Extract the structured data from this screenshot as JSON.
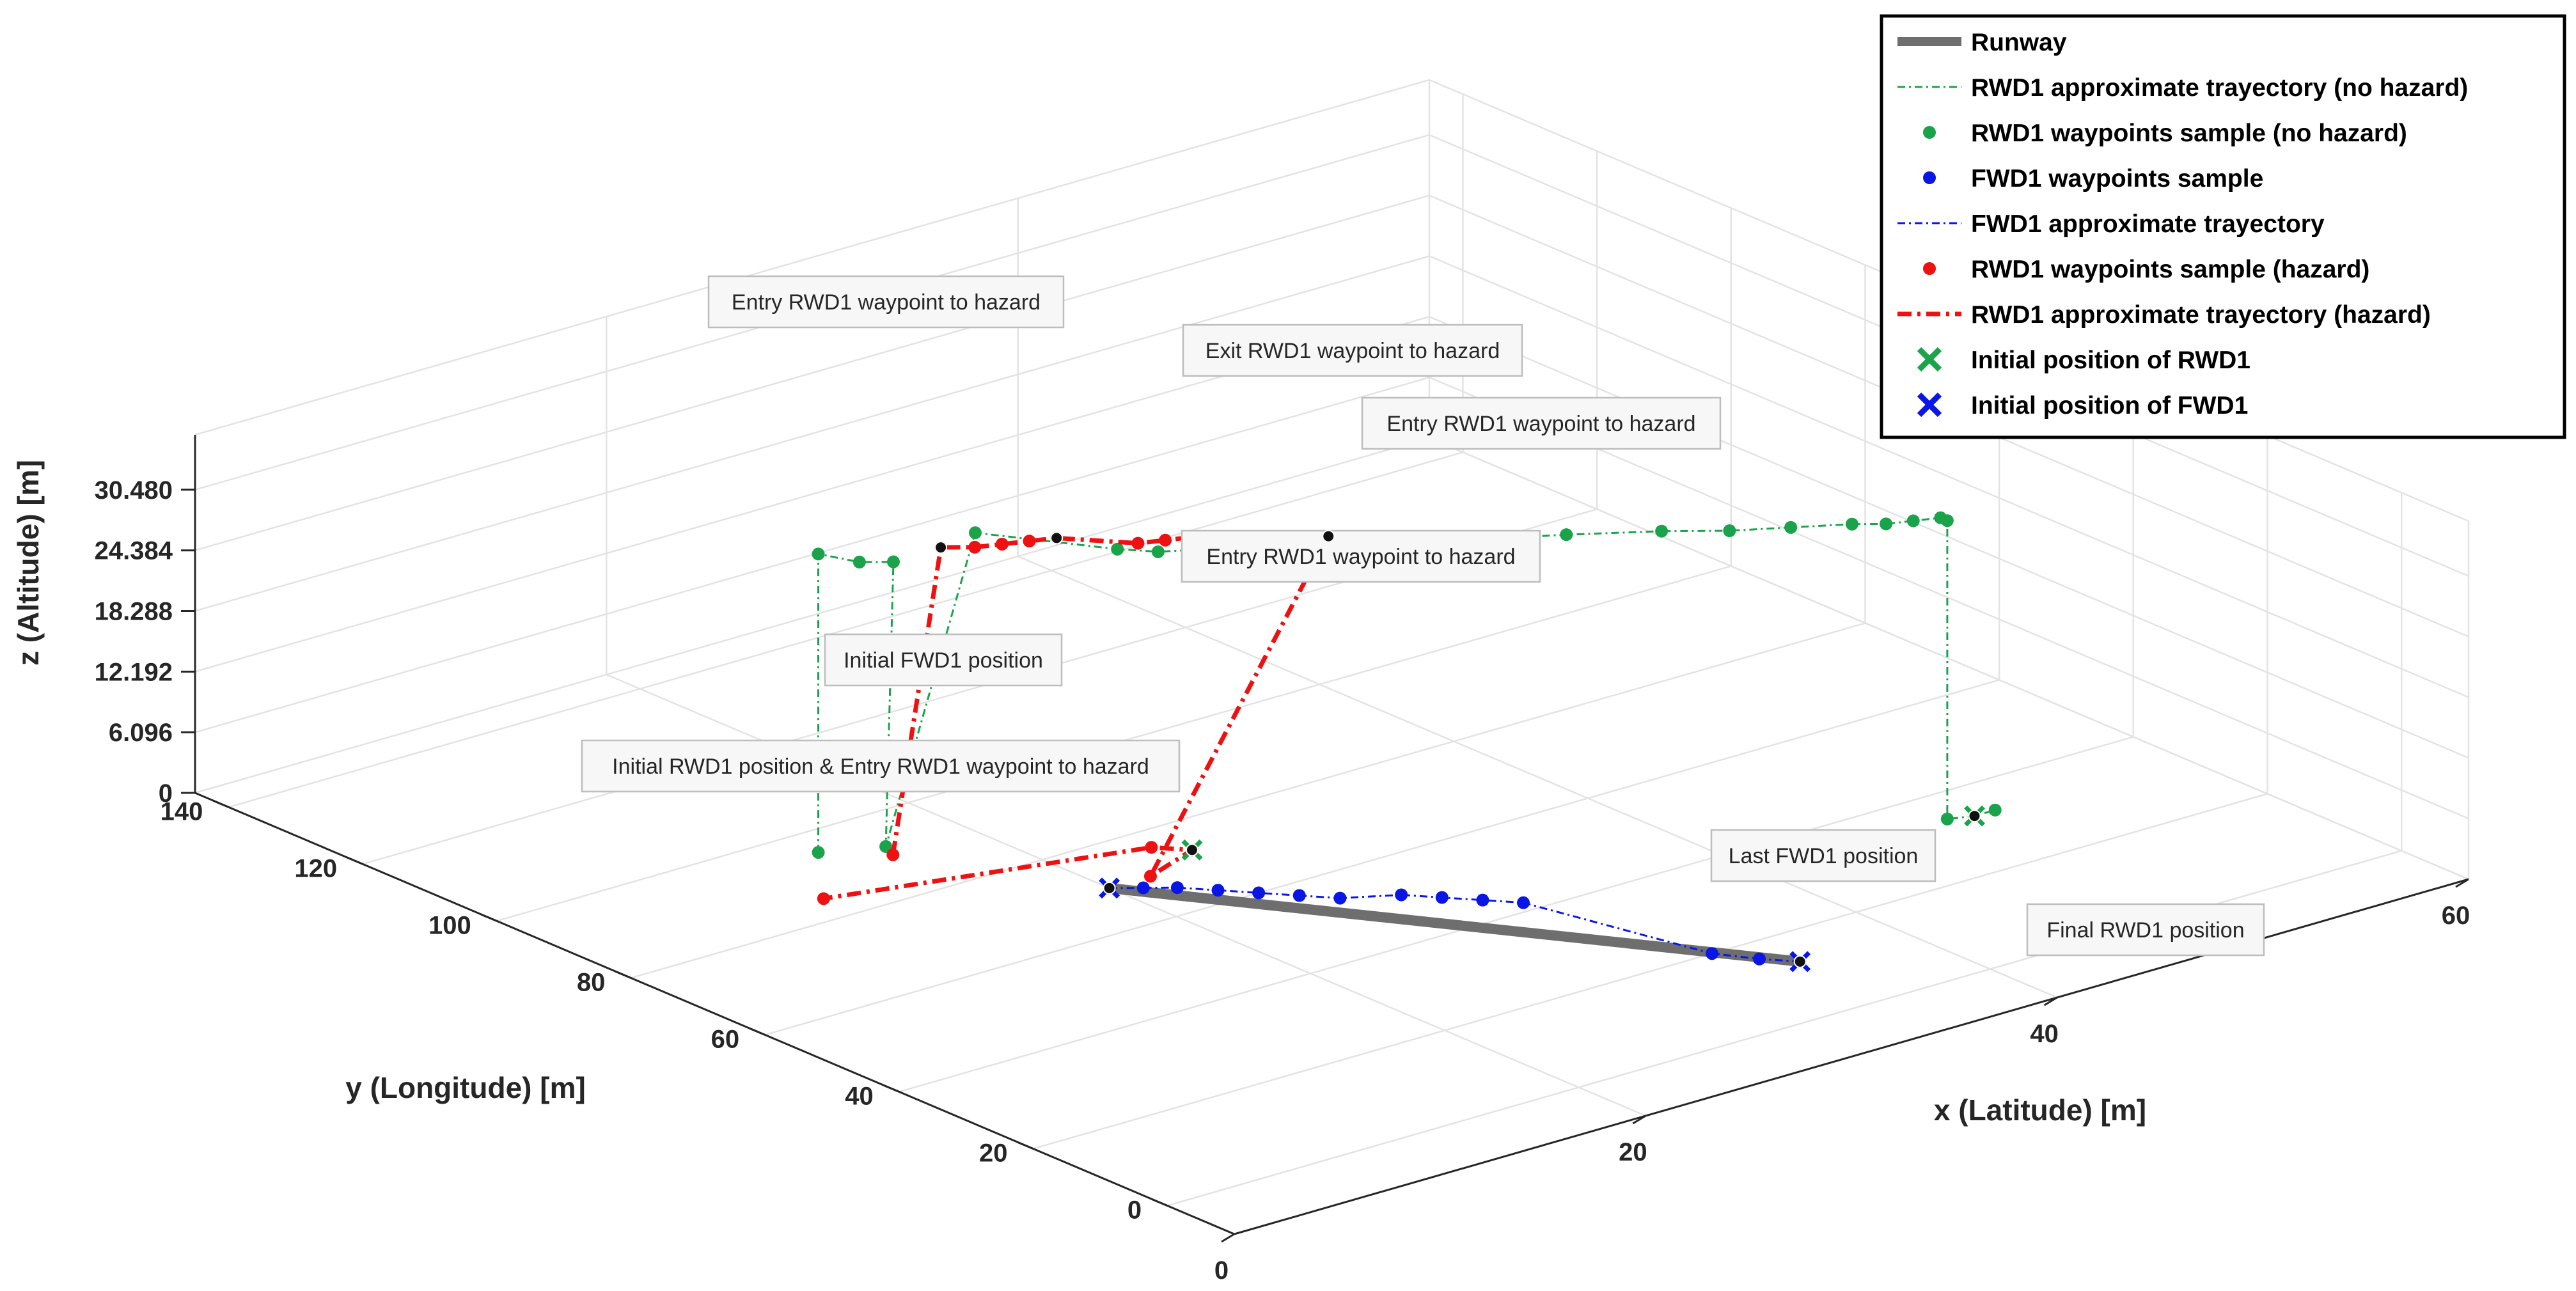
{
  "chart_data": {
    "type": "scatter",
    "subtype": "3d-line",
    "title": "",
    "xlabel": "x (Latitude) [m]",
    "ylabel": "y (Longitude) [m]",
    "zlabel": "z (Altitude) [m]",
    "xlim": [
      0,
      60
    ],
    "ylim": [
      -10,
      145
    ],
    "zlim": [
      0,
      36
    ],
    "x_ticks": [
      "0",
      "20",
      "40",
      "60"
    ],
    "y_ticks": [
      "0",
      "20",
      "40",
      "60",
      "80",
      "100",
      "120",
      "140"
    ],
    "z_ticks": [
      "0",
      "6.096",
      "12.192",
      "18.288",
      "24.384",
      "30.480"
    ],
    "grid": true,
    "legend_position": "top-right",
    "legend": [
      {
        "label": "Runway",
        "color": "#6e6e6e",
        "style": "thick-line"
      },
      {
        "label": "RWD1 approximate trayectory (no hazard)",
        "color": "#1aa34a",
        "style": "dash-dot-line"
      },
      {
        "label": "RWD1 waypoints sample (no hazard)",
        "color": "#1aa34a",
        "style": "dot"
      },
      {
        "label": "FWD1 waypoints sample",
        "color": "#0a16e6",
        "style": "dot"
      },
      {
        "label": "FWD1 approximate trayectory",
        "color": "#0a16e6",
        "style": "dash-dot-line"
      },
      {
        "label": "RWD1 waypoints sample (hazard)",
        "color": "#ee1111",
        "style": "dot"
      },
      {
        "label": "RWD1 approximate trayectory (hazard)",
        "color": "#ee1111",
        "style": "thick-dash-dot-line"
      },
      {
        "label": "Initial position of RWD1",
        "color": "#1aa34a",
        "style": "x-marker"
      },
      {
        "label": "Initial position of FWD1",
        "color": "#0a16e6",
        "style": "x-marker"
      }
    ],
    "series": [
      {
        "name": "Runway",
        "color": "#6e6e6e",
        "points": [
          [
            20,
            70,
            0
          ],
          [
            35,
            13,
            0
          ]
        ]
      },
      {
        "name": "RWD1 approximate trayectory (no hazard)",
        "color": "#1aa34a",
        "points": [
          [
            14,
            95,
            0
          ],
          [
            14,
            95,
            30
          ],
          [
            16,
            95,
            28
          ],
          [
            17,
            93,
            28
          ],
          [
            15,
            88,
            2
          ],
          [
            20,
            90,
            30
          ],
          [
            23,
            78,
            30
          ],
          [
            24,
            75,
            30
          ],
          [
            26,
            72,
            30
          ],
          [
            28,
            68,
            30
          ],
          [
            31,
            64,
            30
          ],
          [
            33,
            60,
            30
          ],
          [
            35,
            57,
            30
          ],
          [
            37,
            54,
            30
          ],
          [
            40,
            49,
            30
          ],
          [
            42,
            45,
            30
          ],
          [
            44,
            42,
            30
          ],
          [
            46,
            39,
            30
          ],
          [
            47,
            37,
            30
          ],
          [
            48,
            36,
            30
          ],
          [
            49,
            35,
            30
          ],
          [
            49,
            34,
            30
          ],
          [
            49,
            34,
            0
          ],
          [
            50,
            33,
            0
          ],
          [
            51,
            33,
            0
          ]
        ]
      },
      {
        "name": "RWD1 waypoints sample (hazard)",
        "color": "#ee1111",
        "points": [
          [
            16,
            90,
            0
          ],
          [
            18,
            89,
            30
          ],
          [
            19,
            87,
            30
          ],
          [
            20,
            86,
            30
          ],
          [
            21,
            85,
            30
          ],
          [
            22,
            84,
            30
          ],
          [
            24,
            78,
            30
          ],
          [
            25,
            77,
            30
          ],
          [
            26,
            76,
            30
          ],
          [
            27,
            74,
            30
          ],
          [
            28,
            72,
            30
          ],
          [
            30,
            68,
            30
          ],
          [
            22,
            70,
            0
          ],
          [
            25,
            73,
            0
          ],
          [
            24,
            76,
            0
          ],
          [
            11,
            85,
            0
          ]
        ]
      },
      {
        "name": "FWD1 waypoints sample",
        "color": "#0a16e6",
        "points": [
          [
            20,
            70,
            0
          ],
          [
            21,
            68,
            0
          ],
          [
            22,
            66,
            0
          ],
          [
            23,
            63,
            0
          ],
          [
            24,
            60,
            0
          ],
          [
            25,
            57,
            0
          ],
          [
            26,
            54,
            0
          ],
          [
            28,
            51,
            0
          ],
          [
            29,
            48,
            0
          ],
          [
            30,
            45,
            0
          ],
          [
            31,
            42,
            0
          ],
          [
            33,
            20,
            0
          ],
          [
            34,
            16,
            0
          ],
          [
            35,
            13,
            0
          ]
        ]
      }
    ],
    "annotations": [
      "Entry RWD1 waypoint to hazard",
      "Exit RWD1 waypoint to hazard",
      "Entry RWD1 waypoint to hazard",
      "Entry RWD1 waypoint to hazard",
      "Initial FWD1 position",
      "Initial RWD1 position & Entry RWD1 waypoint to hazard",
      "Last FWD1 position",
      "Final RWD1 position"
    ]
  },
  "colors": {
    "rwd_green": "#1aa34a",
    "fwd_blue": "#0a16e6",
    "hazard_red": "#ee1111",
    "runway_gray": "#6e6e6e",
    "grid": "#e3e3e3",
    "axis": "#262626"
  }
}
